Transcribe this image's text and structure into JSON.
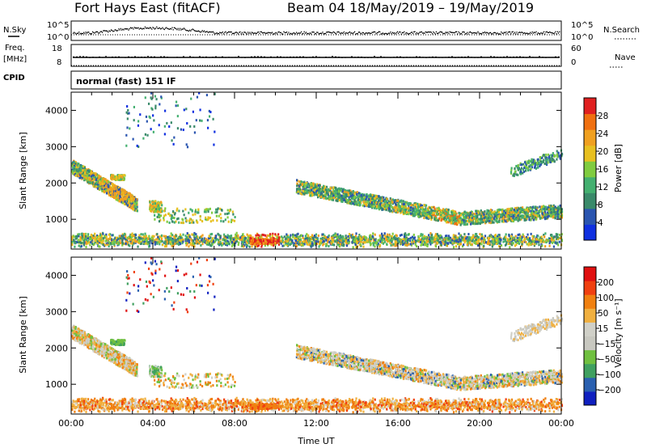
{
  "header": {
    "station": "Fort Hays East (fitACF)",
    "beam": "Beam 04",
    "dates": "18/May/2019 – 19/May/2019"
  },
  "left_labels": {
    "nsky": "N.Sky",
    "freq": "Freq.",
    "freq_unit": "[MHz]",
    "cpid": "CPID"
  },
  "right_labels": {
    "nsearch": "N.Search",
    "nave": "Nave"
  },
  "mode_text": "normal (fast) 151 IF",
  "colors": {
    "power": [
      "#1030e0",
      "#2a55b0",
      "#3a8a6a",
      "#44b070",
      "#80cc40",
      "#e8c020",
      "#f0a020",
      "#f07010",
      "#e02020"
    ],
    "velocity": [
      "#e01010",
      "#f04010",
      "#f08010",
      "#f0b040",
      "#d0d0c8",
      "#c8c8c0",
      "#70c040",
      "#40a060",
      "#2a60b0",
      "#1020c0"
    ]
  },
  "chart_data": [
    {
      "type": "line",
      "name": "noise-panel",
      "ytick_labels_left": [
        "10^5",
        "10^0"
      ],
      "ytick_labels_right": [
        "10^5",
        "10^0"
      ]
    },
    {
      "type": "line",
      "name": "frequency-panel",
      "ytick_labels_left": [
        "18",
        "8"
      ],
      "ytick_labels_right": [
        "60",
        "0"
      ],
      "freq_mhz": 10.5
    },
    {
      "type": "heatmap",
      "name": "power-panel",
      "ylabel": "Slant Range [km]",
      "yticks": [
        1000,
        2000,
        3000,
        4000
      ],
      "ylim": [
        180,
        4500
      ],
      "xlim_hours": [
        0,
        24
      ],
      "colorbar_label": "Power [dB]",
      "colorbar_ticks": [
        "4",
        "8",
        "12",
        "16",
        "20",
        "24",
        "28"
      ],
      "colorbar_range": [
        0,
        30
      ]
    },
    {
      "type": "heatmap",
      "name": "velocity-panel",
      "ylabel": "Slant Range [km]",
      "yticks": [
        1000,
        2000,
        3000,
        4000
      ],
      "ylim": [
        180,
        4500
      ],
      "xlim_hours": [
        0,
        24
      ],
      "xlabel": "Time UT",
      "xtick_labels": [
        "00:00",
        "04:00",
        "08:00",
        "12:00",
        "16:00",
        "20:00",
        "00:00"
      ],
      "colorbar_label": "Velocity [m s⁻¹]",
      "colorbar_ticks": [
        "200",
        "100",
        "50",
        "15",
        "−15",
        "−50",
        "−100",
        "−200"
      ]
    }
  ]
}
